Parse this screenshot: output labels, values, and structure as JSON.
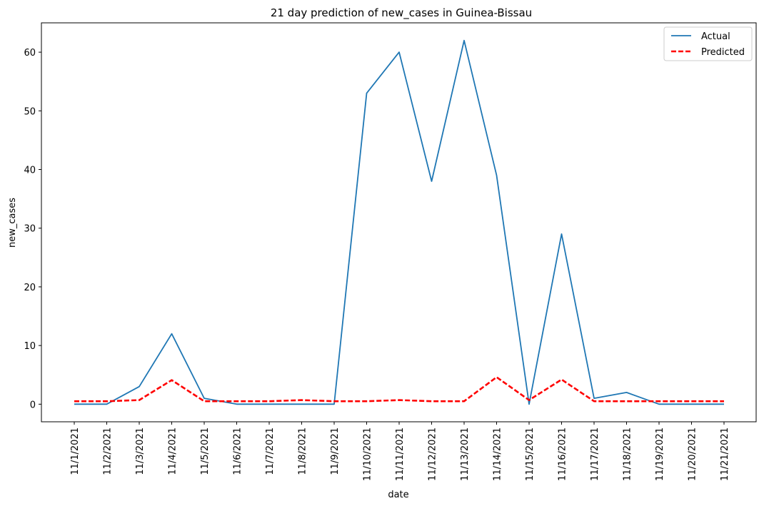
{
  "chart_data": {
    "type": "line",
    "title": "21 day prediction of new_cases in Guinea-Bissau",
    "xlabel": "date",
    "ylabel": "new_cases",
    "categories": [
      "11/1/2021",
      "11/2/2021",
      "11/3/2021",
      "11/4/2021",
      "11/5/2021",
      "11/6/2021",
      "11/7/2021",
      "11/8/2021",
      "11/9/2021",
      "11/10/2021",
      "11/11/2021",
      "11/12/2021",
      "11/13/2021",
      "11/14/2021",
      "11/15/2021",
      "11/16/2021",
      "11/17/2021",
      "11/18/2021",
      "11/19/2021",
      "11/20/2021",
      "11/21/2021"
    ],
    "ylim": [
      -3,
      65
    ],
    "yticks": [
      0,
      10,
      20,
      30,
      40,
      50,
      60
    ],
    "grid": false,
    "legend_position": "top-right",
    "series": [
      {
        "name": "Actual",
        "color": "#1f77b4",
        "style": "solid",
        "values": [
          0,
          0,
          3,
          12,
          1,
          0,
          0,
          0,
          0,
          53,
          60,
          38,
          62,
          39,
          0,
          29,
          1,
          2,
          0,
          0,
          0
        ]
      },
      {
        "name": "Predicted",
        "color": "#ff0000",
        "style": "dashed",
        "values": [
          0.5,
          0.5,
          0.7,
          4.1,
          0.5,
          0.5,
          0.5,
          0.7,
          0.5,
          0.5,
          0.7,
          0.5,
          0.5,
          4.6,
          0.7,
          4.2,
          0.5,
          0.5,
          0.5,
          0.5,
          0.5
        ]
      }
    ]
  }
}
